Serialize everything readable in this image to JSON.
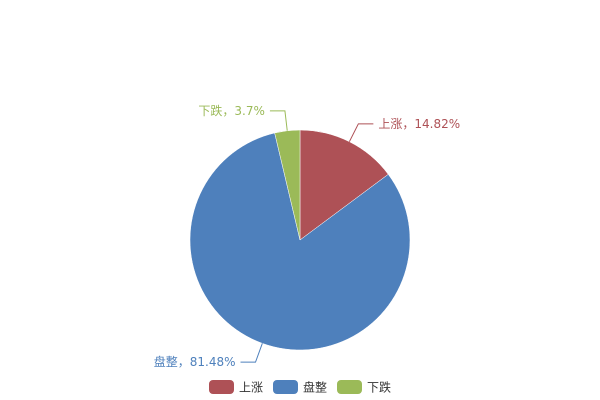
{
  "chart_data": {
    "type": "pie",
    "title": "",
    "slices": [
      {
        "name": "上涨",
        "value": 14.82,
        "label": "上涨，14.82%",
        "color": "#ae5156"
      },
      {
        "name": "盘整",
        "value": 81.48,
        "label": "盘整，81.48%",
        "color": "#4e80bc"
      },
      {
        "name": "下跌",
        "value": 3.7,
        "label": "下跌，3.7%",
        "color": "#9bba58"
      }
    ],
    "start_angle": "top, clockwise",
    "legend": {
      "placement": "bottom",
      "items": [
        "上涨",
        "盘整",
        "下跌"
      ]
    }
  }
}
